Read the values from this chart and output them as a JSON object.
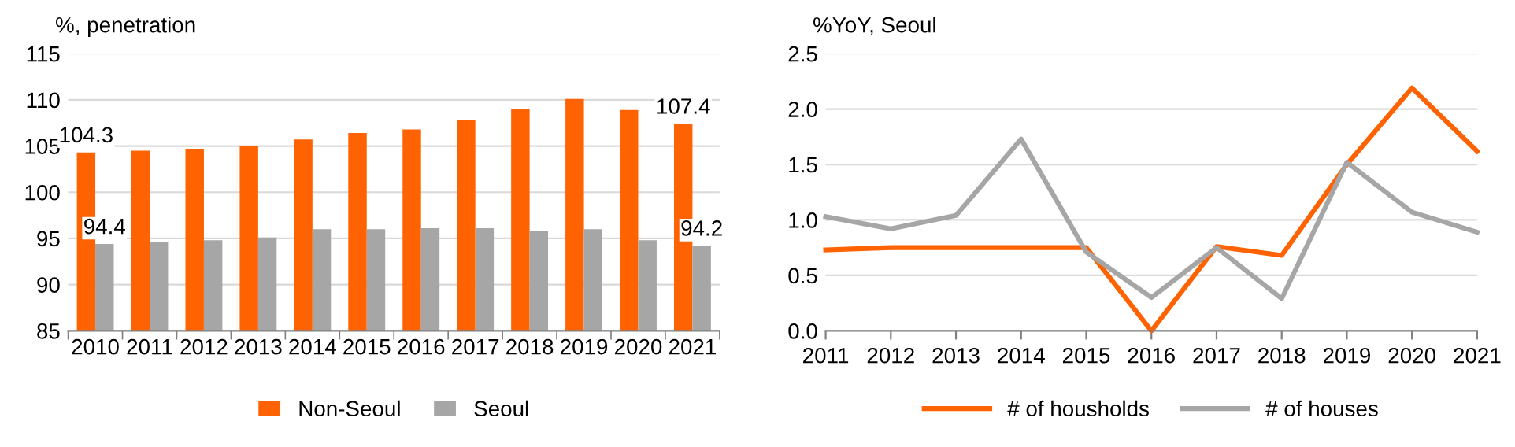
{
  "chart_data": [
    {
      "type": "bar",
      "ylabel": "%, penetration",
      "categories": [
        "2010",
        "2011",
        "2012",
        "2013",
        "2014",
        "2015",
        "2016",
        "2017",
        "2018",
        "2019",
        "2020",
        "2021"
      ],
      "series": [
        {
          "name": "Non-Seoul",
          "color": "#ff6200",
          "values": [
            104.3,
            104.5,
            104.7,
            105.0,
            105.7,
            106.4,
            106.8,
            107.8,
            109.0,
            110.1,
            108.9,
            107.4
          ],
          "value_labels": [
            "104.3",
            null,
            null,
            null,
            null,
            null,
            null,
            null,
            null,
            null,
            null,
            "107.4"
          ]
        },
        {
          "name": "Seoul",
          "color": "#a6a6a6",
          "values": [
            94.4,
            94.6,
            94.8,
            95.1,
            96.0,
            96.0,
            96.1,
            96.1,
            95.8,
            96.0,
            94.8,
            94.2
          ],
          "value_labels": [
            "94.4",
            null,
            null,
            null,
            null,
            null,
            null,
            null,
            null,
            null,
            null,
            "94.2"
          ]
        }
      ],
      "ylim": [
        85,
        115
      ],
      "yticks": [
        85,
        90,
        95,
        100,
        105,
        110,
        115
      ],
      "grid": "y",
      "legend": "bottom"
    },
    {
      "type": "line",
      "ylabel": "%YoY, Seoul",
      "x": [
        2011,
        2012,
        2013,
        2014,
        2015,
        2016,
        2017,
        2018,
        2019,
        2020,
        2021
      ],
      "series": [
        {
          "name": "# of housholds",
          "color": "#ff6200",
          "values": [
            0.73,
            0.75,
            0.75,
            0.75,
            0.75,
            0.0,
            0.76,
            0.68,
            1.5,
            2.19,
            1.62
          ]
        },
        {
          "name": "# of houses",
          "color": "#a6a6a6",
          "values": [
            1.03,
            0.92,
            1.04,
            1.73,
            0.71,
            0.3,
            0.75,
            0.29,
            1.52,
            1.07,
            0.89
          ]
        }
      ],
      "xlim": [
        2011,
        2021
      ],
      "xticks": [
        2011,
        2012,
        2013,
        2014,
        2015,
        2016,
        2017,
        2018,
        2019,
        2020,
        2021
      ],
      "ylim": [
        0,
        2.5
      ],
      "yticks": [
        {
          "value": 0,
          "label": "0.0"
        },
        {
          "value": 0.5,
          "label": "0.5"
        },
        {
          "value": 1,
          "label": "1.0"
        },
        {
          "value": 1.5,
          "label": "1.5"
        },
        {
          "value": 2,
          "label": "2.0"
        },
        {
          "value": 2.5,
          "label": "2.5"
        }
      ],
      "grid": "y",
      "legend": "bottom",
      "line_style": "solid",
      "marker": "none"
    }
  ]
}
